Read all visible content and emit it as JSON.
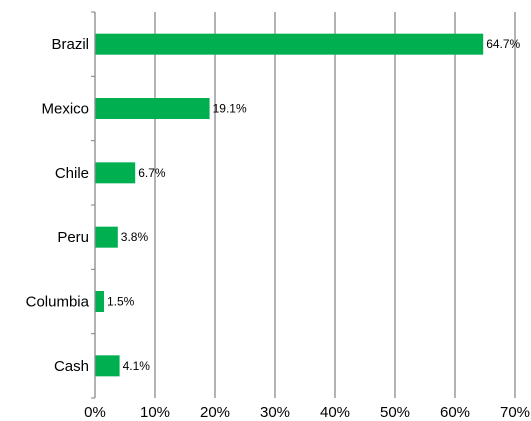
{
  "chart_data": {
    "type": "bar",
    "orientation": "horizontal",
    "categories": [
      "Brazil",
      "Mexico",
      "Chile",
      "Peru",
      "Columbia",
      "Cash"
    ],
    "values": [
      64.7,
      19.1,
      6.7,
      3.8,
      1.5,
      4.1
    ],
    "data_labels": [
      "64.7%",
      "19.1%",
      "6.7%",
      "3.8%",
      "1.5%",
      "4.1%"
    ],
    "x_ticks": [
      "0%",
      "10%",
      "20%",
      "30%",
      "40%",
      "50%",
      "60%",
      "70%"
    ],
    "xlim": [
      0,
      70
    ],
    "grid": "vertical",
    "legend": "none",
    "title": "",
    "xlabel": "",
    "ylabel": "",
    "bar_color": "#00b050",
    "grid_color": "#808080"
  }
}
